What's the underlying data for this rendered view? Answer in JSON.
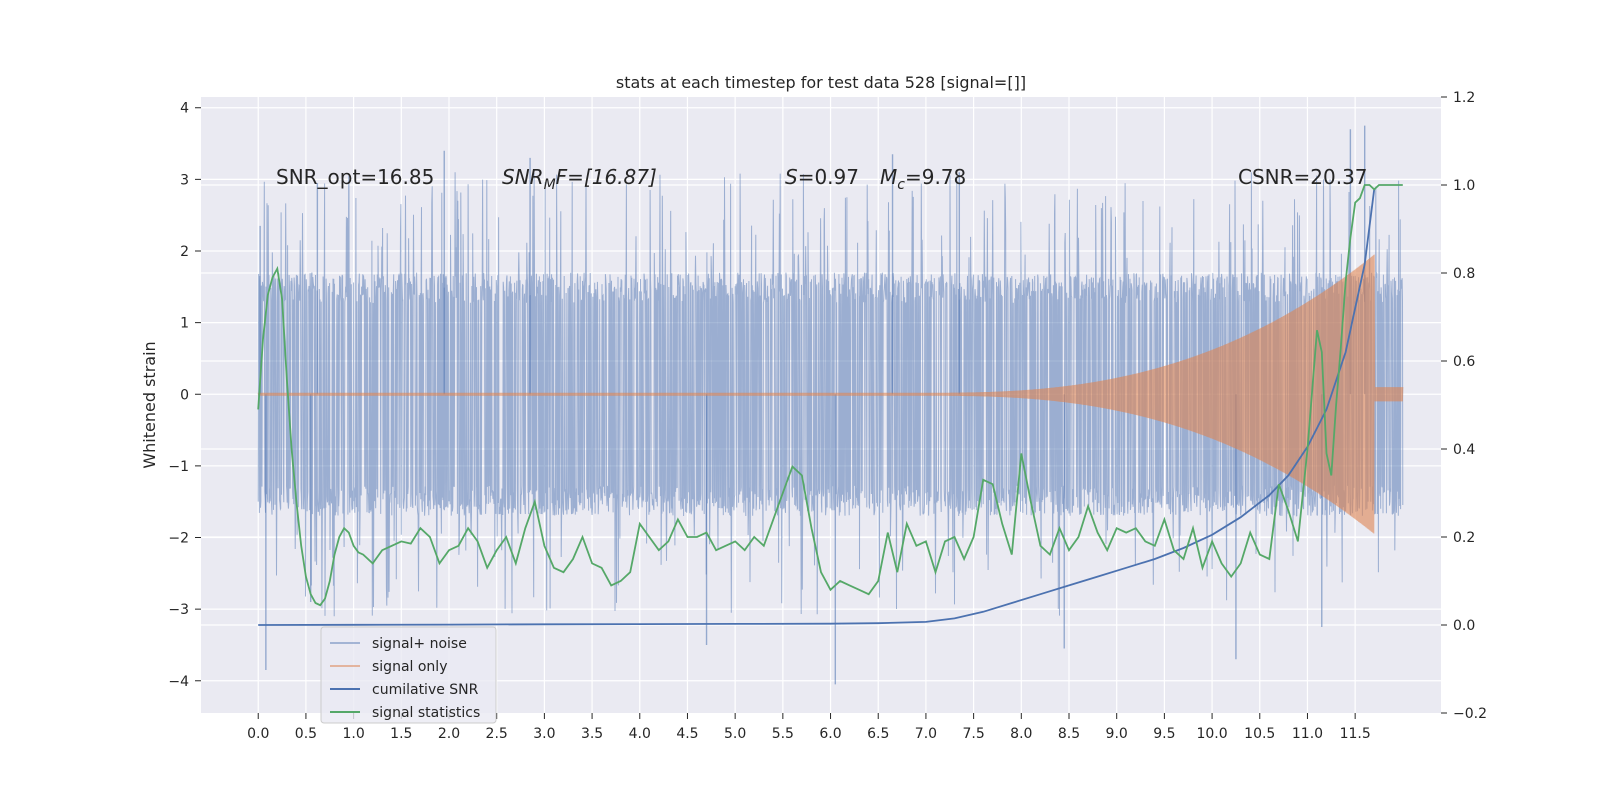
{
  "chart_data": {
    "type": "line",
    "title": "stats at each timestep for test data 528 [signal=[]]",
    "xlabel": "",
    "ylabel": "Whitened strain",
    "xlim": [
      -0.6,
      12.4
    ],
    "ylim": [
      -4.45,
      4.15
    ],
    "y2lim": [
      -0.2,
      1.2
    ],
    "grid": true,
    "x_ticks": [
      0.0,
      0.5,
      1.0,
      1.5,
      2.0,
      2.5,
      3.0,
      3.5,
      4.0,
      4.5,
      5.0,
      5.5,
      6.0,
      6.5,
      7.0,
      7.5,
      8.0,
      8.5,
      9.0,
      9.5,
      10.0,
      10.5,
      11.0,
      11.5
    ],
    "x_tick_labels": [
      "0.0",
      "0.5",
      "1.0",
      "1.5",
      "2.0",
      "2.5",
      "3.0",
      "3.5",
      "4.0",
      "4.5",
      "5.0",
      "5.5",
      "6.0",
      "6.5",
      "7.0",
      "7.5",
      "8.0",
      "8.5",
      "9.0",
      "9.5",
      "10.0",
      "10.5",
      "11.0",
      "11.5"
    ],
    "y_ticks": [
      -4,
      -3,
      -2,
      -1,
      0,
      1,
      2,
      3,
      4
    ],
    "y_tick_labels": [
      "−4",
      "−3",
      "−2",
      "−1",
      "0",
      "1",
      "2",
      "3",
      "4"
    ],
    "y2_ticks": [
      -0.2,
      0.0,
      0.2,
      0.4,
      0.6,
      0.8,
      1.0,
      1.2
    ],
    "y2_tick_labels": [
      "−0.2",
      "0.0",
      "0.2",
      "0.4",
      "0.6",
      "0.8",
      "1.0",
      "1.2"
    ],
    "annotations": {
      "snr_opt": "SNR_opt=16.85",
      "snr_mf_base": "SNR",
      "snr_mf_sub": "M",
      "snr_mf_rest": "F=[16.87]",
      "s_italic": "S",
      "s_rest": "=0.97",
      "mc_base": "M",
      "mc_sub": "c",
      "mc_rest": "=9.78",
      "csnr": "CSNR=20.37"
    },
    "legend_position": "lower-left",
    "series": [
      {
        "name": "signal+ noise",
        "axis": "left",
        "color": "#4c72b0",
        "envelope": {
          "x": [
            0.0,
            12.0
          ],
          "typical_band": [
            -1.7,
            1.7
          ],
          "peak_band": [
            -3.0,
            3.5
          ],
          "spikes": [
            [
              0.02,
              2.35
            ],
            [
              0.08,
              -3.85
            ],
            [
              0.55,
              -2.9
            ],
            [
              0.62,
              2.95
            ],
            [
              1.95,
              3.4
            ],
            [
              2.85,
              3.3
            ],
            [
              4.7,
              -3.5
            ],
            [
              6.05,
              -4.05
            ],
            [
              6.65,
              3.35
            ],
            [
              7.35,
              3.1
            ],
            [
              8.45,
              -3.55
            ],
            [
              10.25,
              -3.7
            ],
            [
              11.15,
              -3.25
            ],
            [
              11.45,
              3.7
            ],
            [
              11.6,
              3.75
            ]
          ]
        }
      },
      {
        "name": "signal only",
        "axis": "left",
        "color": "#dd8452",
        "chirp": {
          "start_x": 7.0,
          "end_x": 11.7,
          "start_amp": 0.02,
          "peak_amp": 1.95,
          "final_amp": 0.1
        }
      },
      {
        "name": "cumilative SNR",
        "axis": "right",
        "color": "#4c72b0",
        "x": [
          0.0,
          1.0,
          2.0,
          3.0,
          4.0,
          5.0,
          6.0,
          6.5,
          7.0,
          7.3,
          7.6,
          7.9,
          8.2,
          8.5,
          8.8,
          9.1,
          9.4,
          9.7,
          10.0,
          10.3,
          10.6,
          10.8,
          11.0,
          11.2,
          11.4,
          11.6,
          11.7
        ],
        "values": [
          0.0,
          0.0005,
          0.001,
          0.0015,
          0.002,
          0.0025,
          0.003,
          0.004,
          0.007,
          0.015,
          0.03,
          0.05,
          0.07,
          0.09,
          0.11,
          0.13,
          0.15,
          0.175,
          0.205,
          0.245,
          0.295,
          0.34,
          0.405,
          0.49,
          0.62,
          0.82,
          0.99
        ]
      },
      {
        "name": "signal statistics",
        "axis": "right",
        "color": "#55a868",
        "x": [
          0.0,
          0.05,
          0.1,
          0.15,
          0.2,
          0.25,
          0.3,
          0.35,
          0.4,
          0.45,
          0.5,
          0.55,
          0.6,
          0.65,
          0.7,
          0.75,
          0.8,
          0.85,
          0.9,
          0.95,
          1.0,
          1.05,
          1.1,
          1.2,
          1.3,
          1.4,
          1.5,
          1.6,
          1.7,
          1.8,
          1.9,
          2.0,
          2.1,
          2.2,
          2.3,
          2.4,
          2.5,
          2.6,
          2.7,
          2.8,
          2.9,
          3.0,
          3.1,
          3.2,
          3.3,
          3.4,
          3.5,
          3.6,
          3.7,
          3.8,
          3.9,
          4.0,
          4.1,
          4.2,
          4.3,
          4.4,
          4.5,
          4.6,
          4.7,
          4.8,
          4.9,
          5.0,
          5.1,
          5.2,
          5.3,
          5.4,
          5.5,
          5.6,
          5.7,
          5.8,
          5.9,
          6.0,
          6.1,
          6.2,
          6.3,
          6.4,
          6.5,
          6.6,
          6.7,
          6.8,
          6.9,
          7.0,
          7.1,
          7.2,
          7.3,
          7.4,
          7.5,
          7.6,
          7.7,
          7.8,
          7.9,
          8.0,
          8.1,
          8.2,
          8.3,
          8.4,
          8.5,
          8.6,
          8.7,
          8.8,
          8.9,
          9.0,
          9.1,
          9.2,
          9.3,
          9.4,
          9.5,
          9.6,
          9.7,
          9.8,
          9.9,
          10.0,
          10.1,
          10.2,
          10.3,
          10.4,
          10.5,
          10.6,
          10.7,
          10.8,
          10.9,
          11.0,
          11.1,
          11.15,
          11.2,
          11.25,
          11.3,
          11.35,
          11.4,
          11.45,
          11.5,
          11.55,
          11.6,
          11.65,
          11.7,
          11.75,
          11.8,
          11.9,
          12.0
        ],
        "values": [
          0.49,
          0.65,
          0.75,
          0.79,
          0.81,
          0.74,
          0.56,
          0.4,
          0.28,
          0.18,
          0.11,
          0.07,
          0.05,
          0.045,
          0.06,
          0.1,
          0.16,
          0.2,
          0.22,
          0.21,
          0.18,
          0.165,
          0.16,
          0.14,
          0.17,
          0.18,
          0.19,
          0.185,
          0.22,
          0.2,
          0.14,
          0.17,
          0.18,
          0.22,
          0.19,
          0.13,
          0.17,
          0.2,
          0.14,
          0.22,
          0.28,
          0.18,
          0.13,
          0.12,
          0.15,
          0.2,
          0.14,
          0.13,
          0.09,
          0.1,
          0.12,
          0.23,
          0.2,
          0.17,
          0.19,
          0.24,
          0.2,
          0.2,
          0.21,
          0.17,
          0.18,
          0.19,
          0.17,
          0.2,
          0.18,
          0.24,
          0.3,
          0.36,
          0.34,
          0.22,
          0.12,
          0.08,
          0.1,
          0.09,
          0.08,
          0.07,
          0.1,
          0.21,
          0.12,
          0.23,
          0.18,
          0.19,
          0.12,
          0.19,
          0.2,
          0.15,
          0.2,
          0.33,
          0.32,
          0.23,
          0.16,
          0.39,
          0.28,
          0.18,
          0.16,
          0.22,
          0.17,
          0.2,
          0.27,
          0.21,
          0.17,
          0.22,
          0.21,
          0.22,
          0.19,
          0.18,
          0.24,
          0.17,
          0.15,
          0.22,
          0.13,
          0.19,
          0.14,
          0.11,
          0.14,
          0.21,
          0.16,
          0.15,
          0.32,
          0.26,
          0.19,
          0.4,
          0.67,
          0.62,
          0.39,
          0.34,
          0.5,
          0.63,
          0.78,
          0.88,
          0.96,
          0.97,
          1.0,
          1.0,
          0.99,
          1.0,
          1.0,
          1.0,
          1.0
        ]
      }
    ]
  }
}
